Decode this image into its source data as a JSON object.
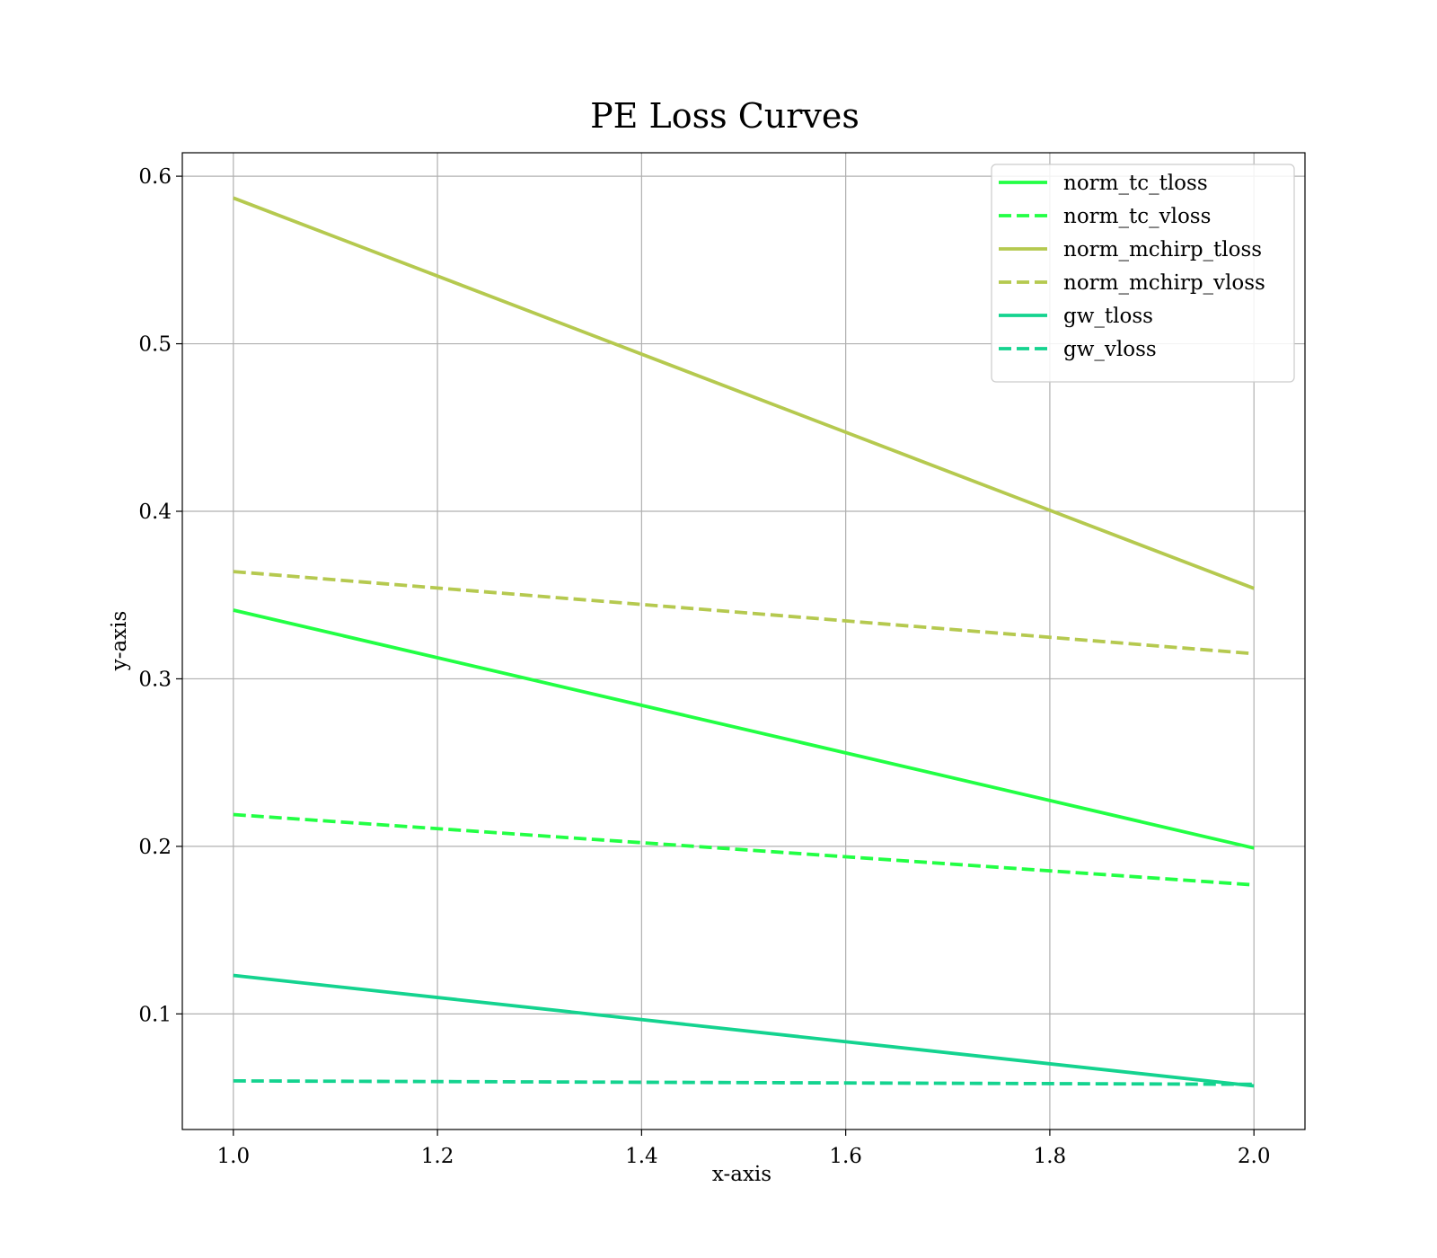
{
  "chart_data": {
    "type": "line",
    "title": "PE Loss Curves",
    "xlabel": "x-axis",
    "ylabel": "y-axis",
    "xlim": [
      0.95,
      2.05
    ],
    "ylim": [
      0.031,
      0.614
    ],
    "xticks": [
      "1.0",
      "1.2",
      "1.4",
      "1.6",
      "1.8",
      "2.0"
    ],
    "yticks": [
      "0.1",
      "0.2",
      "0.3",
      "0.4",
      "0.5",
      "0.6"
    ],
    "grid": true,
    "legend_position": "top-right",
    "x": [
      1.0,
      2.0
    ],
    "series": [
      {
        "name": "norm_tc_tloss",
        "values": [
          0.341,
          0.199
        ],
        "color": "#22ff44",
        "dash": "solid"
      },
      {
        "name": "norm_tc_vloss",
        "values": [
          0.219,
          0.177
        ],
        "color": "#22ff44",
        "dash": "dashed"
      },
      {
        "name": "norm_mchirp_tloss",
        "values": [
          0.587,
          0.354
        ],
        "color": "#b5c94f",
        "dash": "solid"
      },
      {
        "name": "norm_mchirp_vloss",
        "values": [
          0.364,
          0.315
        ],
        "color": "#b5c94f",
        "dash": "dashed"
      },
      {
        "name": "gw_tloss",
        "values": [
          0.123,
          0.057
        ],
        "color": "#14d38f",
        "dash": "solid"
      },
      {
        "name": "gw_vloss",
        "values": [
          0.06,
          0.058
        ],
        "color": "#14d38f",
        "dash": "dashed"
      }
    ]
  }
}
